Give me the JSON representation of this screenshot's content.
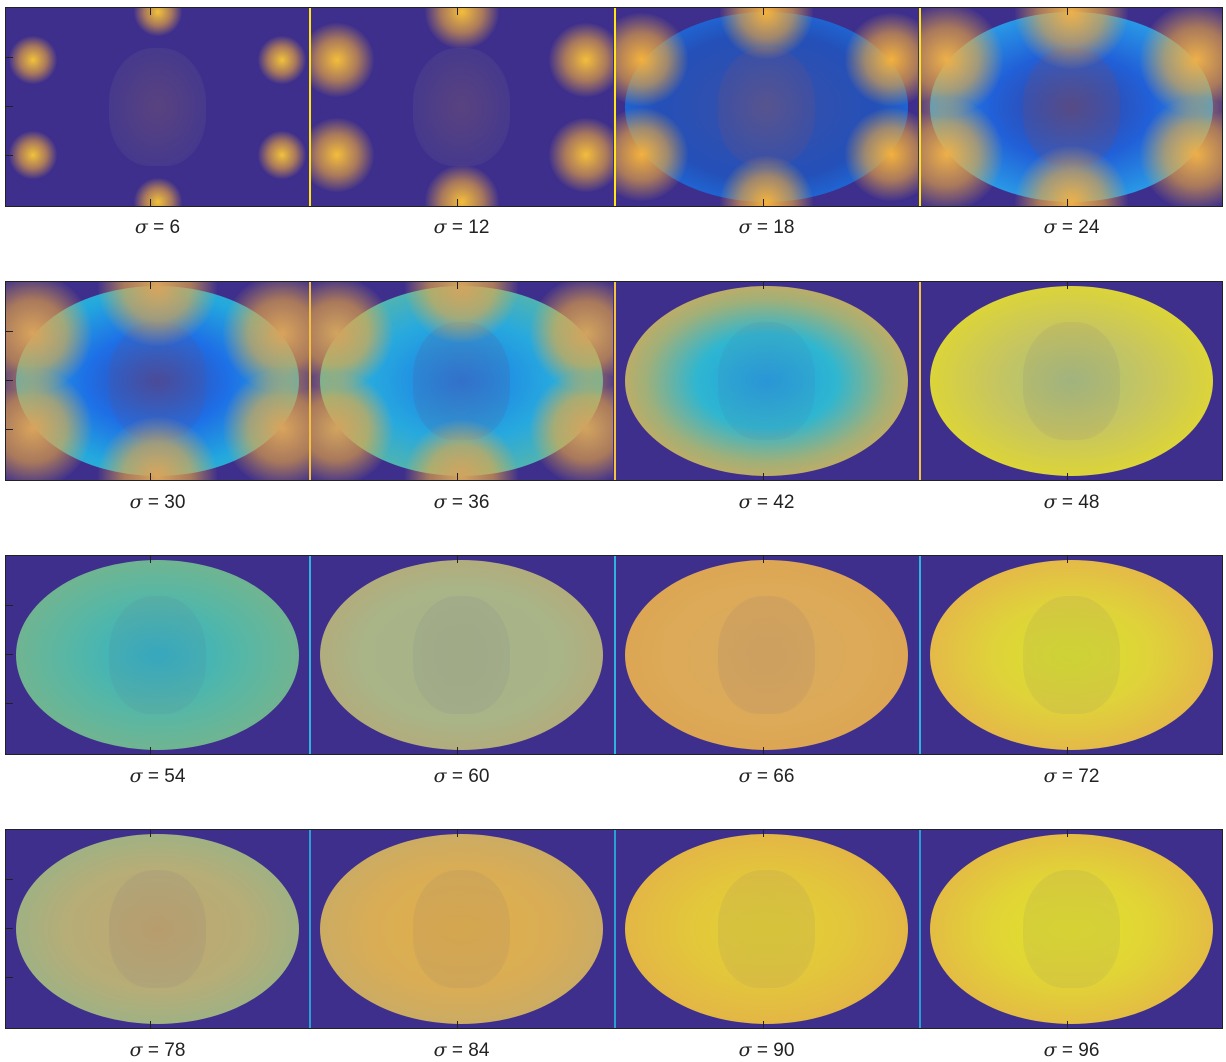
{
  "figure": {
    "rows": [
      {
        "divider_color": "#ffe51a",
        "panels": [
          {
            "label": "σ = 6",
            "sigma": 6
          },
          {
            "label": "σ = 12",
            "sigma": 12
          },
          {
            "label": "σ = 18",
            "sigma": 18
          },
          {
            "label": "σ = 24",
            "sigma": 24
          }
        ]
      },
      {
        "divider_color": "#f5c242",
        "panels": [
          {
            "label": "σ = 30",
            "sigma": 30
          },
          {
            "label": "σ = 36",
            "sigma": 36
          },
          {
            "label": "σ = 42",
            "sigma": 42
          },
          {
            "label": "σ = 48",
            "sigma": 48
          }
        ]
      },
      {
        "divider_color": "#2fb4e0",
        "panels": [
          {
            "label": "σ = 54",
            "sigma": 54
          },
          {
            "label": "σ = 60",
            "sigma": 60
          },
          {
            "label": "σ = 66",
            "sigma": 66
          },
          {
            "label": "σ = 72",
            "sigma": 72
          }
        ]
      },
      {
        "divider_color": "#2a9fd6",
        "panels": [
          {
            "label": "σ = 78",
            "sigma": 78
          },
          {
            "label": "σ = 84",
            "sigma": 84
          },
          {
            "label": "σ = 90",
            "sigma": 90
          },
          {
            "label": "σ = 96",
            "sigma": 96
          }
        ]
      }
    ],
    "colors": {
      "background": "#3e2f8c",
      "blue": "#1f6ee8",
      "cyan": "#2ab0d6",
      "teal": "#5cb39a",
      "orange": "#e8a94c",
      "yellow": "#e2d83a",
      "brain_overlay": "#7a5a70"
    }
  }
}
